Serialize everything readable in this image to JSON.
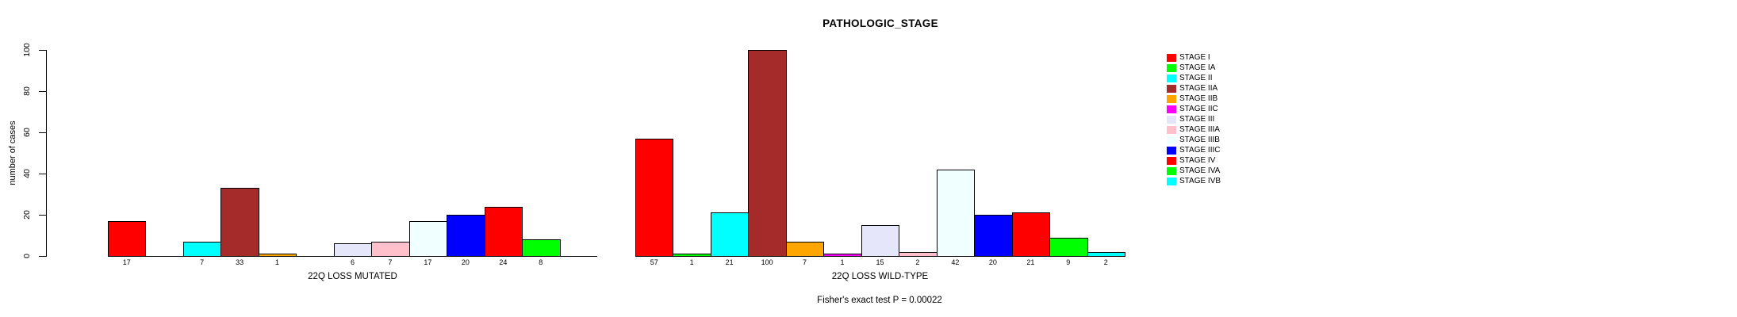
{
  "title": "PATHOLOGIC_STAGE",
  "subtitle": "Fisher's exact test P = 0.00022",
  "chart_data": {
    "type": "bar",
    "title": "PATHOLOGIC_STAGE",
    "xlabel": "",
    "ylabel": "number of cases",
    "ylim": [
      0,
      100
    ],
    "yticks": [
      0,
      20,
      40,
      60,
      80,
      100
    ],
    "grid": false,
    "legend_position": "right",
    "annotation": "Fisher's exact test P = 0.00022",
    "categories": [
      "STAGE I",
      "STAGE IA",
      "STAGE II",
      "STAGE IIA",
      "STAGE IIB",
      "STAGE IIC",
      "STAGE III",
      "STAGE IIIA",
      "STAGE IIIB",
      "STAGE IIIC",
      "STAGE IV",
      "STAGE IVA",
      "STAGE IVB"
    ],
    "colors": [
      "#FF0000",
      "#00FF00",
      "#00FFFF",
      "#A52A2A",
      "#FFA500",
      "#FF00FF",
      "#E6E6FA",
      "#FFC0CB",
      "#F0FFFF",
      "#0000FF",
      "#FF0000",
      "#00FF00",
      "#00FFFF"
    ],
    "groups": [
      {
        "xlabel": "22Q LOSS MUTATED",
        "values": [
          17,
          0,
          7,
          33,
          1,
          0,
          6,
          7,
          17,
          20,
          24,
          8,
          0
        ]
      },
      {
        "xlabel": "22Q LOSS WILD-TYPE",
        "values": [
          57,
          1,
          21,
          100,
          7,
          1,
          15,
          2,
          42,
          20,
          21,
          9,
          2
        ]
      }
    ],
    "bar_labels": "value shown under each non-zero bar"
  },
  "legend": {
    "items": [
      {
        "label": "STAGE I",
        "color": "#FF0000"
      },
      {
        "label": "STAGE IA",
        "color": "#00FF00"
      },
      {
        "label": "STAGE II",
        "color": "#00FFFF"
      },
      {
        "label": "STAGE IIA",
        "color": "#A52A2A"
      },
      {
        "label": "STAGE IIB",
        "color": "#FFA500"
      },
      {
        "label": "STAGE IIC",
        "color": "#FF00FF"
      },
      {
        "label": "STAGE III",
        "color": "#E6E6FA"
      },
      {
        "label": "STAGE IIIA",
        "color": "#FFC0CB"
      },
      {
        "label": "STAGE IIIB",
        "color": "#F0FFFF"
      },
      {
        "label": "STAGE IIIC",
        "color": "#0000FF"
      },
      {
        "label": "STAGE IV",
        "color": "#FF0000"
      },
      {
        "label": "STAGE IVA",
        "color": "#00FF00"
      },
      {
        "label": "STAGE IVB",
        "color": "#00FFFF"
      }
    ]
  }
}
